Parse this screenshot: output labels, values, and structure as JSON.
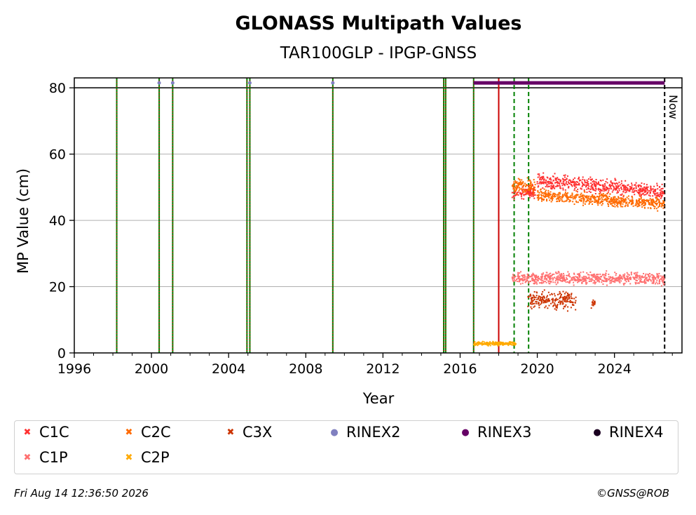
{
  "chart_data": {
    "type": "scatter",
    "title": "GLONASS Multipath Values",
    "subtitle": "TAR100GLP - IPGP-GNSS",
    "xlabel": "Year",
    "ylabel": "MP Value (cm)",
    "xlim": [
      1996,
      2027.5
    ],
    "ylim": [
      0,
      83
    ],
    "x_ticks": [
      "1996",
      "2000",
      "2004",
      "2008",
      "2012",
      "2016",
      "2020",
      "2024"
    ],
    "y_ticks": [
      "0",
      "20",
      "40",
      "60",
      "80"
    ],
    "grid": "horizontal",
    "reference_line_y": 80,
    "now_label": "Now",
    "now_year": 2026.6,
    "event_lines": {
      "dotted_red_green": [
        1998.2,
        2000.4,
        2001.1,
        2004.95,
        2005.1,
        2009.4,
        2015.15,
        2015.25,
        2016.7
      ],
      "solid_red": [
        2018.0
      ],
      "dashed_green": [
        2018.8,
        2019.55
      ]
    },
    "series": [
      {
        "name": "C1C",
        "color": "#ff3030",
        "marker": "x",
        "segments": [
          {
            "x": [
              2018.7,
              2019.9
            ],
            "y_center": 48.5,
            "spread": 2.5
          },
          {
            "x": [
              2020.0,
              2026.6
            ],
            "y_center": 52,
            "spread": 3,
            "trend_end": 48.5
          }
        ]
      },
      {
        "name": "C2C",
        "color": "#ff6a00",
        "marker": "x",
        "segments": [
          {
            "x": [
              2018.7,
              2019.9
            ],
            "y_center": 50.5,
            "spread": 3
          },
          {
            "x": [
              2020.0,
              2026.6
            ],
            "y_center": 47.5,
            "spread": 2.5,
            "trend_end": 45
          }
        ]
      },
      {
        "name": "C3X",
        "color": "#cc3300",
        "marker": "x",
        "segments": [
          {
            "x": [
              2019.5,
              2022.0
            ],
            "y_center": 16,
            "spread": 4
          },
          {
            "x": [
              2022.8,
              2023.0
            ],
            "y_center": 15,
            "spread": 2
          }
        ]
      },
      {
        "name": "RINEX2",
        "color": "#8080c0",
        "marker": "o",
        "points": [
          [
            2000.4,
            81.5
          ],
          [
            2001.1,
            81.5
          ],
          [
            2005.1,
            81.5
          ],
          [
            2009.4,
            81.5
          ]
        ]
      },
      {
        "name": "RINEX3",
        "color": "#660066",
        "marker": "o",
        "range": [
          2016.7,
          2026.6
        ],
        "y": 81.5
      },
      {
        "name": "RINEX4",
        "color": "#1a0020",
        "marker": "o",
        "points": []
      },
      {
        "name": "C1P",
        "color": "#ff7070",
        "marker": "x",
        "segments": [
          {
            "x": [
              2018.7,
              2026.6
            ],
            "y_center": 22.5,
            "spread": 2.5
          }
        ]
      },
      {
        "name": "C2P",
        "color": "#ffaa00",
        "marker": "x",
        "segments": [
          {
            "x": [
              2016.7,
              2018.9
            ],
            "y_center": 2.8,
            "spread": 0.8
          }
        ]
      }
    ]
  },
  "footer": {
    "timestamp": "Fri Aug 14 12:36:50 2026",
    "credit": "©GNSS@ROB"
  }
}
